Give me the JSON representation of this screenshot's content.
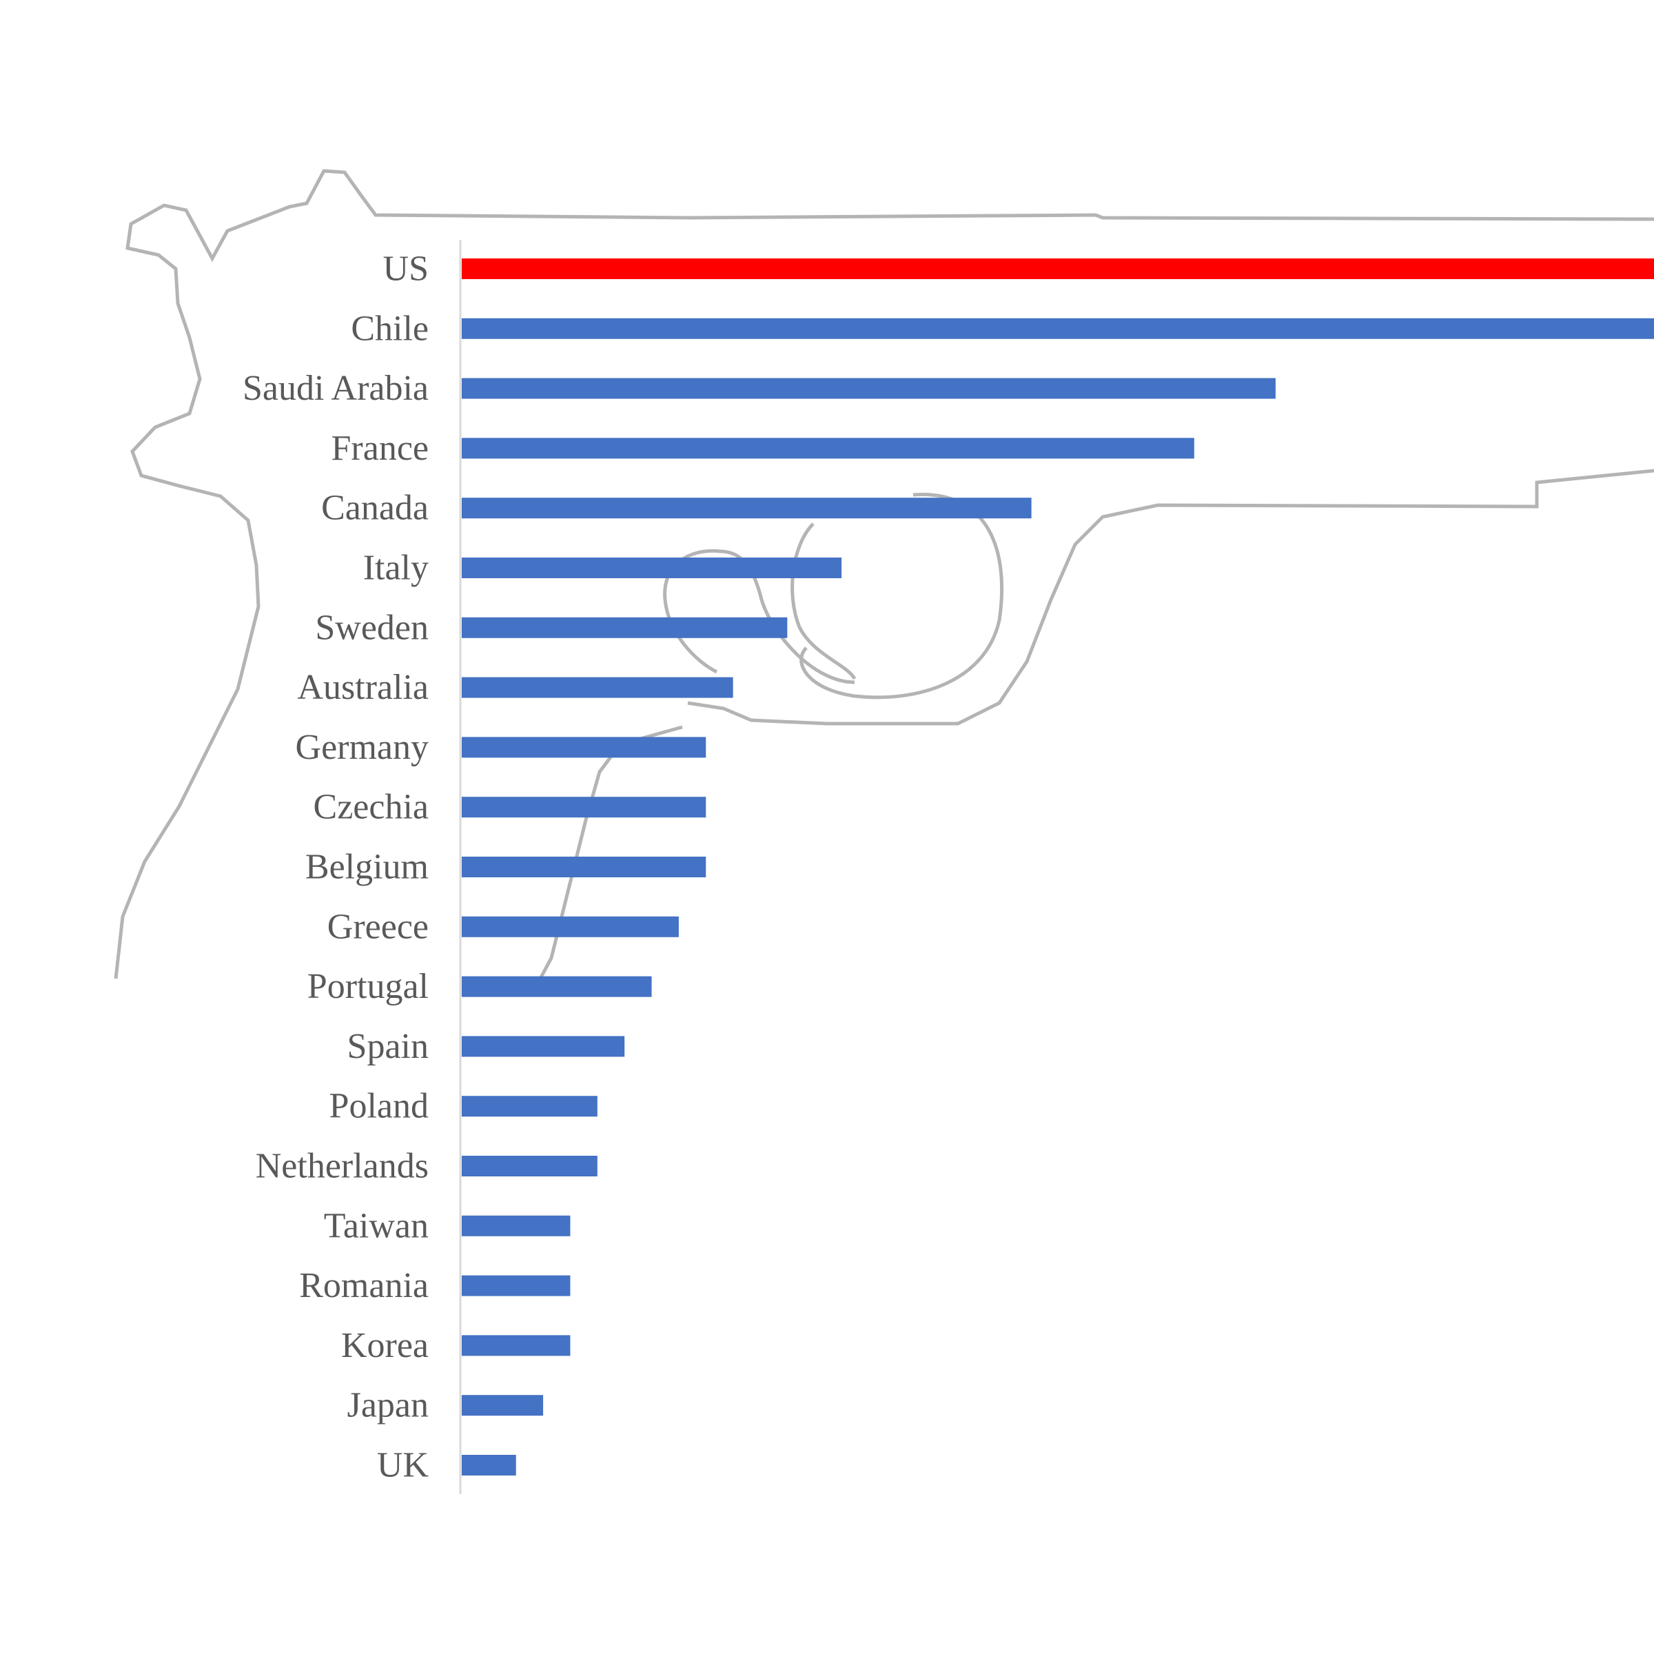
{
  "chart_data": {
    "type": "bar",
    "orientation": "horizontal",
    "title": "",
    "xlabel": "",
    "ylabel": "",
    "categories": [
      "US",
      "Chile",
      "Saudi Arabia",
      "France",
      "Canada",
      "Italy",
      "Sweden",
      "Australia",
      "Germany",
      "Czechia",
      "Belgium",
      "Greece",
      "Portugal",
      "Spain",
      "Poland",
      "Netherlands",
      "Taiwan",
      "Romania",
      "Korea",
      "Japan",
      "UK"
    ],
    "values": [
      46,
      44,
      30,
      27,
      21,
      14,
      12,
      10,
      9,
      9,
      9,
      8,
      7,
      6,
      5,
      5,
      4,
      4,
      4,
      3,
      2
    ],
    "xlim": [
      0,
      44
    ],
    "grid": false,
    "legend": "none",
    "axis_tick_labels_shown": false,
    "background_illustration": "pistol-outline-icon",
    "colors": {
      "highlight": "#ff0000",
      "bar": "#4472c4",
      "axis": "#d9d9d9",
      "label": "#595959",
      "outline": "#b4b4b4"
    },
    "highlight_category": "US"
  }
}
